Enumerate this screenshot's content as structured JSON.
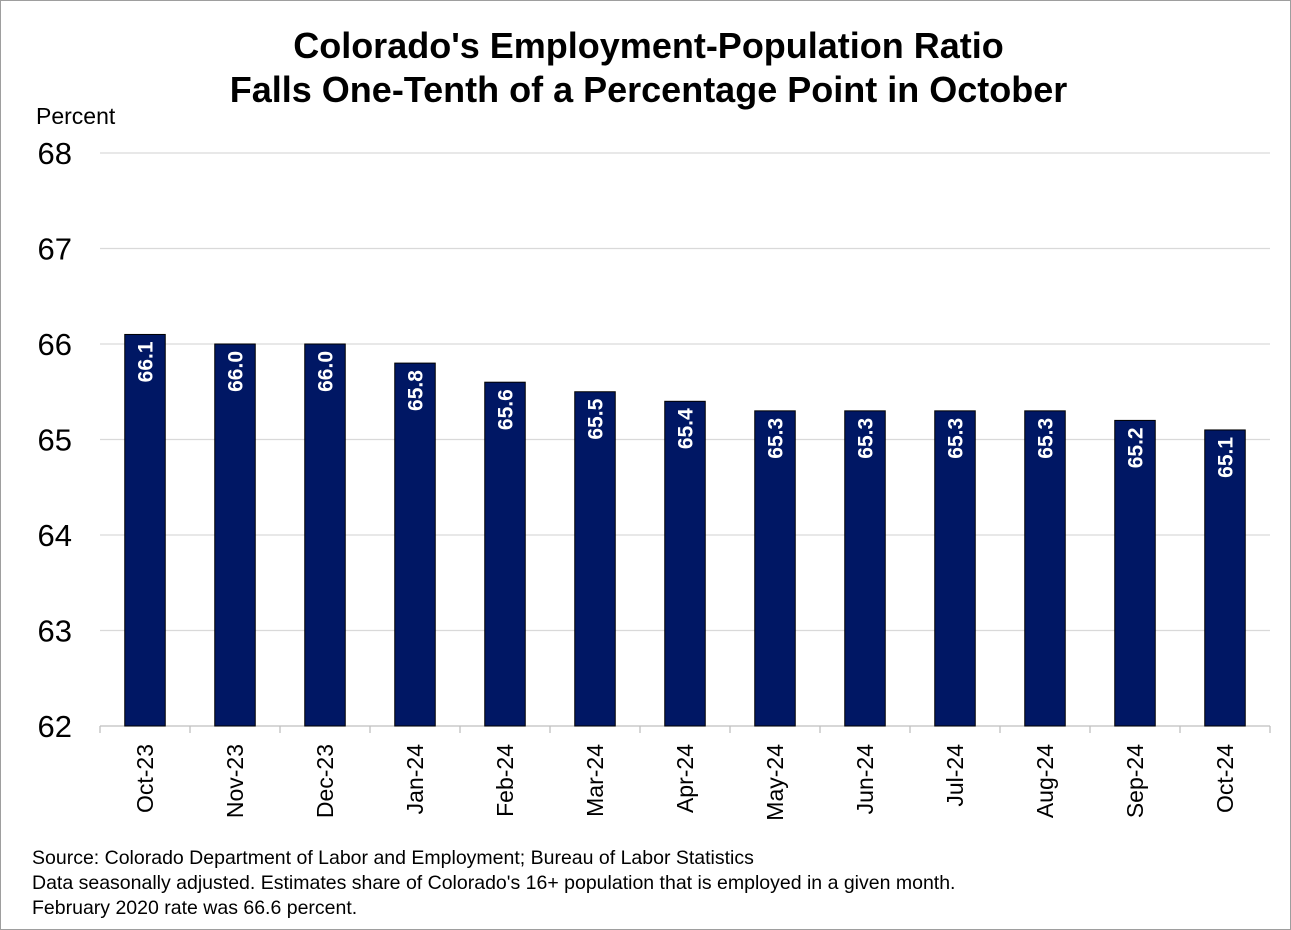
{
  "chart_data": {
    "type": "bar",
    "title": "Colorado's Employment-Population Ratio Falls One-Tenth of a Percentage Point in October",
    "title_lines": [
      "Colorado's Employment-Population Ratio",
      "Falls One-Tenth of a Percentage Point in October"
    ],
    "ylabel": "Percent",
    "xlabel": "",
    "categories": [
      "Oct-23",
      "Nov-23",
      "Dec-23",
      "Jan-24",
      "Feb-24",
      "Mar-24",
      "Apr-24",
      "May-24",
      "Jun-24",
      "Jul-24",
      "Aug-24",
      "Sep-24",
      "Oct-24"
    ],
    "values": [
      66.1,
      66.0,
      66.0,
      65.8,
      65.6,
      65.5,
      65.4,
      65.3,
      65.3,
      65.3,
      65.3,
      65.2,
      65.1
    ],
    "data_labels": [
      "66.1",
      "66.0",
      "66.0",
      "65.8",
      "65.6",
      "65.5",
      "65.4",
      "65.3",
      "65.3",
      "65.3",
      "65.3",
      "65.2",
      "65.1"
    ],
    "ylim": [
      62,
      68
    ],
    "yticks": [
      62,
      63,
      64,
      65,
      66,
      67,
      68
    ],
    "grid": true,
    "legend": "none",
    "bar_color": "#001764",
    "label_color": "#ffffff",
    "grid_color": "#d9d9d9"
  },
  "footnotes": [
    "Source: Colorado Department of Labor and Employment; Bureau of Labor Statistics",
    "Data seasonally adjusted. Estimates share of Colorado's 16+ population that is employed in a given month.",
    "February 2020 rate was 66.6 percent."
  ]
}
